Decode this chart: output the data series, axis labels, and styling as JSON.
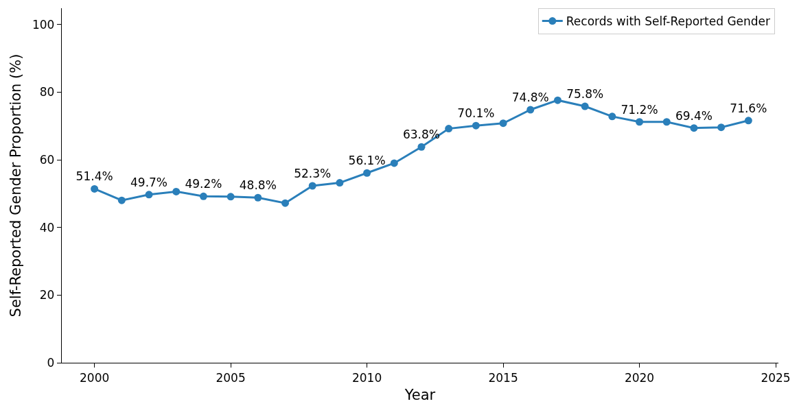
{
  "chart_data": {
    "type": "line",
    "xlabel": "Year",
    "ylabel": "Self-Reported Gender Proportion (%)",
    "x": [
      2000,
      2001,
      2002,
      2003,
      2004,
      2005,
      2006,
      2007,
      2008,
      2009,
      2010,
      2011,
      2012,
      2013,
      2014,
      2015,
      2016,
      2017,
      2018,
      2019,
      2020,
      2021,
      2022,
      2023,
      2024
    ],
    "series": [
      {
        "name": "Records with Self-Reported Gender",
        "color": "#2a7fba",
        "values": [
          51.4,
          48.0,
          49.7,
          50.6,
          49.2,
          49.1,
          48.8,
          47.2,
          52.3,
          53.2,
          56.1,
          59.0,
          63.8,
          69.2,
          70.1,
          70.8,
          74.8,
          77.6,
          75.8,
          72.8,
          71.2,
          71.2,
          69.4,
          69.6,
          71.6
        ],
        "value_labels": [
          "51.4%",
          null,
          "49.7%",
          null,
          "49.2%",
          null,
          "48.8%",
          null,
          "52.3%",
          null,
          "56.1%",
          null,
          "63.8%",
          null,
          "70.1%",
          null,
          "74.8%",
          null,
          "75.8%",
          null,
          "71.2%",
          null,
          "69.4%",
          null,
          "71.6%"
        ]
      }
    ],
    "xlim": [
      1998.8,
      2025.1
    ],
    "xticks": [
      2000,
      2005,
      2010,
      2015,
      2020,
      2025
    ],
    "ylim": [
      0,
      104.8
    ],
    "yticks": [
      0,
      20,
      40,
      60,
      80,
      100
    ],
    "grid": false,
    "legend": "top right",
    "marker": "circle",
    "line_style": "solid"
  }
}
